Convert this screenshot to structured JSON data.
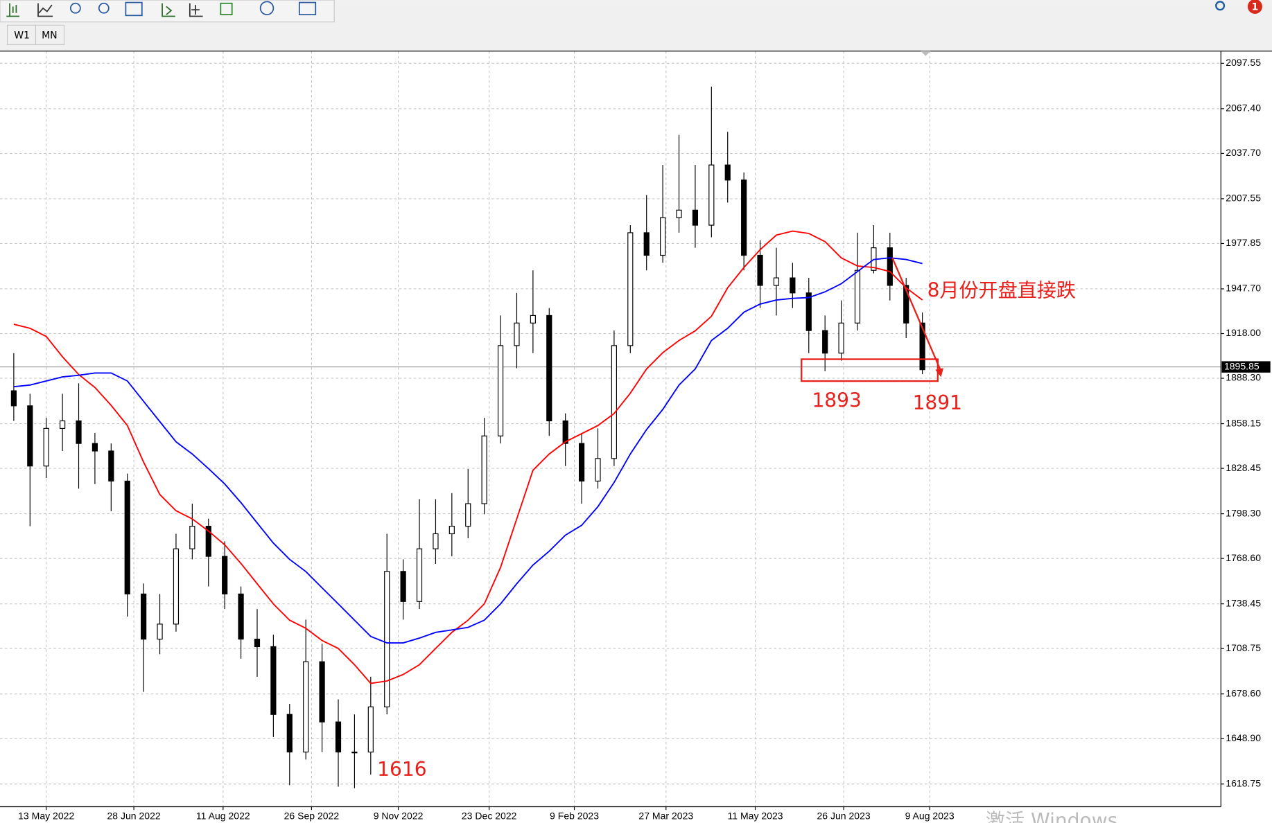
{
  "toolbar": {
    "timeframes": [
      "W1",
      "MN"
    ],
    "notification_count": "1"
  },
  "watermark": "激活 Windows",
  "chart_data": {
    "type": "candlestick",
    "open": [
      1880,
      1870,
      1830,
      1855,
      1860,
      1845,
      1840,
      1820,
      1745,
      1715,
      1725,
      1775,
      1790,
      1770,
      1745,
      1715,
      1710,
      1665,
      1640,
      1700,
      1660,
      1640,
      1640,
      1670,
      1760,
      1740,
      1775,
      1785,
      1790,
      1805,
      1850,
      1910,
      1925,
      1930,
      1860,
      1845,
      1820,
      1835,
      1910,
      1985,
      1970,
      1995,
      2000,
      1990,
      2030,
      2020,
      1970,
      1950,
      1955,
      1945,
      1920,
      1905,
      1925,
      1960,
      1975,
      1950,
      1925
    ],
    "high": [
      1905,
      1878,
      1862,
      1878,
      1885,
      1852,
      1845,
      1825,
      1752,
      1745,
      1785,
      1805,
      1795,
      1780,
      1750,
      1735,
      1718,
      1672,
      1728,
      1712,
      1675,
      1665,
      1690,
      1785,
      1768,
      1808,
      1808,
      1812,
      1828,
      1862,
      1930,
      1945,
      1960,
      1935,
      1865,
      1852,
      1855,
      1920,
      1990,
      2010,
      2030,
      2050,
      2030,
      2082,
      2052,
      2025,
      1980,
      1975,
      1965,
      1955,
      1930,
      1940,
      1985,
      1990,
      1985,
      1955,
      1932
    ],
    "low": [
      1860,
      1790,
      1822,
      1840,
      1815,
      1818,
      1800,
      1730,
      1680,
      1705,
      1720,
      1768,
      1750,
      1735,
      1702,
      1690,
      1650,
      1618,
      1635,
      1640,
      1617,
      1616,
      1625,
      1665,
      1728,
      1735,
      1765,
      1770,
      1782,
      1798,
      1845,
      1895,
      1905,
      1850,
      1830,
      1805,
      1815,
      1830,
      1905,
      1960,
      1965,
      1985,
      1975,
      1982,
      2005,
      1960,
      1935,
      1930,
      1935,
      1905,
      1893,
      1900,
      1920,
      1958,
      1940,
      1915,
      1891
    ],
    "close": [
      1870,
      1830,
      1855,
      1860,
      1845,
      1840,
      1820,
      1745,
      1715,
      1725,
      1775,
      1790,
      1770,
      1745,
      1715,
      1710,
      1665,
      1640,
      1700,
      1660,
      1640,
      1640,
      1670,
      1760,
      1740,
      1775,
      1785,
      1790,
      1805,
      1850,
      1910,
      1925,
      1930,
      1860,
      1845,
      1820,
      1835,
      1910,
      1985,
      1970,
      1995,
      2000,
      1990,
      2030,
      2020,
      1970,
      1950,
      1955,
      1945,
      1920,
      1905,
      1925,
      1960,
      1975,
      1950,
      1925,
      1894
    ],
    "series": [
      {
        "color": "#ff0000",
        "values": [
          1924.2,
          1921.5,
          1916.1,
          1902.6,
          1890.8,
          1882.2,
          1870.3,
          1856.9,
          1832.6,
          1811.1,
          1800.3,
          1794.9,
          1786.8,
          1777.7,
          1765.3,
          1751.8,
          1738.4,
          1727.6,
          1722.2,
          1714.1,
          1708.8,
          1698.0,
          1685.6,
          1687.2,
          1691.5,
          1698.0,
          1708.8,
          1719.5,
          1727.6,
          1738.4,
          1762.6,
          1794.9,
          1827.2,
          1838.0,
          1846.1,
          1851.5,
          1856.9,
          1864.9,
          1878.4,
          1894.5,
          1905.3,
          1913.4,
          1919.8,
          1929.5,
          1948.4,
          1961.9,
          1973.7,
          1983.4,
          1986.1,
          1984.5,
          1979.1,
          1968.3,
          1962.9,
          1961.9,
          1959.2,
          1948.4,
          1940.3
        ]
      },
      {
        "color": "#0000ff",
        "values": [
          1882.7,
          1883.8,
          1886.5,
          1889.2,
          1890.3,
          1891.8,
          1891.8,
          1886.5,
          1873.0,
          1859.5,
          1846.1,
          1838.0,
          1828.3,
          1818.1,
          1805.7,
          1792.2,
          1778.8,
          1768.0,
          1759.9,
          1749.1,
          1738.4,
          1727.6,
          1716.8,
          1712.5,
          1712.5,
          1715.7,
          1719.5,
          1721.1,
          1722.8,
          1727.6,
          1738.4,
          1751.8,
          1764.2,
          1773.4,
          1784.1,
          1790.6,
          1803.0,
          1819.1,
          1838.0,
          1854.2,
          1867.6,
          1883.8,
          1894.5,
          1913.4,
          1921.5,
          1932.2,
          1937.6,
          1940.3,
          1941.4,
          1941.9,
          1945.7,
          1951.1,
          1959.2,
          1967.2,
          1968.3,
          1967.2,
          1964.5
        ]
      }
    ],
    "current_price": 1895.85,
    "xlim": [
      -0.85,
      74.4
    ],
    "xticks": [
      {
        "value": 2.0,
        "label": "13 May 2022"
      },
      {
        "value": 7.4,
        "label": "28 Jun 2022"
      },
      {
        "value": 12.9,
        "label": "11 Aug 2022"
      },
      {
        "value": 18.35,
        "label": "26 Sep 2022"
      },
      {
        "value": 23.7,
        "label": "9 Nov 2022"
      },
      {
        "value": 29.3,
        "label": "23 Dec 2022"
      },
      {
        "value": 34.55,
        "label": "9 Feb 2023"
      },
      {
        "value": 40.2,
        "label": "27 Mar 2023"
      },
      {
        "value": 45.7,
        "label": "11 May 2023"
      },
      {
        "value": 51.15,
        "label": "26 Jun 2023"
      },
      {
        "value": 56.45,
        "label": "9 Aug 2023"
      }
    ],
    "ylim": [
      1603.67,
      2104.55
    ],
    "yticks": [
      {
        "value": 2097.55,
        "label": "2097.55"
      },
      {
        "value": 2067.4,
        "label": "2067.40"
      },
      {
        "value": 2037.7,
        "label": "2037.70"
      },
      {
        "value": 2007.55,
        "label": "2007.55"
      },
      {
        "value": 1977.85,
        "label": "1977.85"
      },
      {
        "value": 1947.7,
        "label": "1947.70"
      },
      {
        "value": 1918.0,
        "label": "1918.00"
      },
      {
        "value": 1888.3,
        "label": "1888.30"
      },
      {
        "value": 1858.15,
        "label": "1858.15"
      },
      {
        "value": 1828.45,
        "label": "1828.45"
      },
      {
        "value": 1798.3,
        "label": "1798.30"
      },
      {
        "value": 1768.6,
        "label": "1768.60"
      },
      {
        "value": 1738.45,
        "label": "1738.45"
      },
      {
        "value": 1708.75,
        "label": "1708.75"
      },
      {
        "value": 1678.6,
        "label": "1678.60"
      },
      {
        "value": 1648.9,
        "label": "1648.90"
      },
      {
        "value": 1618.75,
        "label": "1618.75"
      }
    ],
    "grid": true,
    "annotations": [
      "8月份开盘直接跌",
      "1893",
      "1891",
      "1616"
    ]
  }
}
